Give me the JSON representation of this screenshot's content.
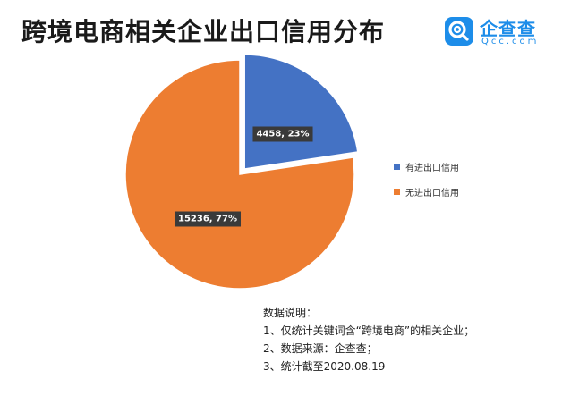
{
  "header": {
    "title": "跨境电商相关企业出口信用分布"
  },
  "brand": {
    "name": "企查查",
    "sub": "Qcc.com",
    "accent": "#1d8de9"
  },
  "chart_data": {
    "type": "pie",
    "title": "跨境电商相关企业出口信用分布",
    "series": [
      {
        "name": "有进出口信用",
        "value": 4458,
        "percent": 23,
        "label": "4458, 23%",
        "color": "#4472c4"
      },
      {
        "name": "无进出口信用",
        "value": 15236,
        "percent": 77,
        "label": "15236, 77%",
        "color": "#ed7d31"
      }
    ],
    "legend_position": "right",
    "exploded_slice": "有进出口信用"
  },
  "notes": {
    "heading": "数据说明：",
    "lines": [
      "1、仅统计关键词含“跨境电商”的相关企业；",
      "2、数据来源：企查查；",
      "3、统计截至2020.08.19"
    ]
  }
}
